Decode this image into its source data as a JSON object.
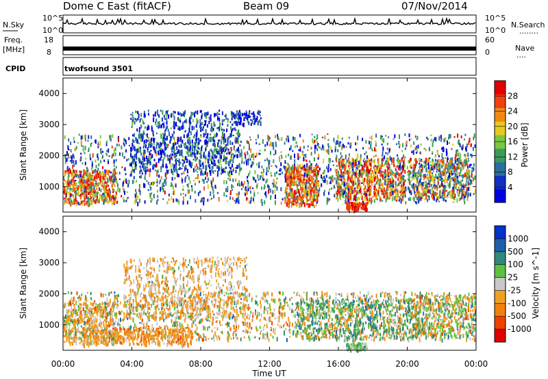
{
  "header": {
    "station": "Dome C East (fitACF)",
    "beam": "Beam 09",
    "date": "07/Nov/2014"
  },
  "side_labels": {
    "nsky": "N.Sky",
    "nsearch": "N.Search",
    "freq": "Freq.",
    "freq_unit": "[MHz]",
    "nave": "Nave",
    "cpid": "CPID",
    "dots": "........",
    "dots_short": "...."
  },
  "noise_panel": {
    "left_top": "10^5",
    "left_bottom": "10^0",
    "right_top": "10^5",
    "right_bottom": "10^0"
  },
  "freq_panel": {
    "left_top": "18",
    "left_bottom": "8",
    "right_top": "60",
    "right_bottom": "0"
  },
  "cpid_text": "twofsound 3501",
  "colors": {
    "power_scale": [
      "#0000e0",
      "#1030c0",
      "#2a6e9e",
      "#3a9a5a",
      "#7ac840",
      "#e8c820",
      "#f08a10",
      "#f04010",
      "#e00000"
    ],
    "velocity_scale": [
      "#0033cc",
      "#1f5fa8",
      "#2f8a78",
      "#5fc040",
      "#c8c8c8",
      "#f0a020",
      "#f08010",
      "#f04000",
      "#e00000"
    ]
  },
  "chart_data": [
    {
      "type": "heatmap",
      "name": "power",
      "ylabel": "Slant Range [km]",
      "colorbar_label": "Power [dB]",
      "colorbar_ticks": [
        "4",
        "8",
        "12",
        "16",
        "20",
        "24",
        "28"
      ],
      "ylim": [
        180,
        4500
      ],
      "y_ticks": [
        "1000",
        "2000",
        "3000",
        "4000"
      ],
      "y_tick_values": [
        1000,
        2000,
        3000,
        4000
      ]
    },
    {
      "type": "heatmap",
      "name": "velocity",
      "ylabel": "Slant Range [km]",
      "colorbar_label": "Velocity [m s^-1]",
      "colorbar_ticks": [
        "1000",
        "500",
        "100",
        "25",
        "-25",
        "-100",
        "-500",
        "-1000"
      ],
      "ylim": [
        180,
        4500
      ],
      "y_ticks": [
        "1000",
        "2000",
        "3000",
        "4000"
      ],
      "y_tick_values": [
        1000,
        2000,
        3000,
        4000
      ]
    }
  ],
  "x_axis": {
    "label": "Time UT",
    "ticks": [
      "00:00",
      "04:00",
      "08:00",
      "12:00",
      "16:00",
      "20:00",
      "00:00"
    ],
    "tick_hours": [
      0,
      4,
      8,
      12,
      16,
      20,
      24
    ]
  }
}
